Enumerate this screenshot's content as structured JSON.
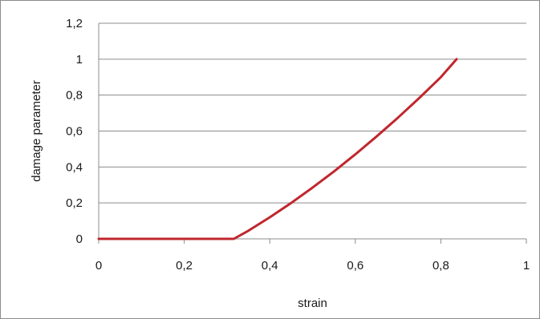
{
  "chart_data": {
    "type": "line",
    "title": "",
    "xlabel": "strain",
    "ylabel": "damage parameter",
    "xlim": [
      0,
      1
    ],
    "ylim": [
      0,
      1.2
    ],
    "x_ticks": [
      0,
      0.2,
      0.4,
      0.6,
      0.8,
      1
    ],
    "y_ticks": [
      0,
      0.2,
      0.4,
      0.6,
      0.8,
      1,
      1.2
    ],
    "x_tick_labels": [
      "0",
      "0,2",
      "0,4",
      "0,6",
      "0,8",
      "1"
    ],
    "y_tick_labels": [
      "0",
      "0,2",
      "0,4",
      "0,6",
      "0,8",
      "1",
      "1,2"
    ],
    "grid": "horizontal",
    "legend": "none",
    "series": [
      {
        "color": "#c0272d",
        "x": [
          0,
          0.1,
          0.2,
          0.3,
          0.316,
          0.35,
          0.4,
          0.45,
          0.5,
          0.55,
          0.6,
          0.65,
          0.7,
          0.75,
          0.8,
          0.837
        ],
        "y": [
          0,
          0,
          0,
          0,
          0,
          0.045,
          0.12,
          0.2,
          0.285,
          0.375,
          0.47,
          0.57,
          0.675,
          0.785,
          0.9,
          1.0
        ]
      }
    ]
  }
}
